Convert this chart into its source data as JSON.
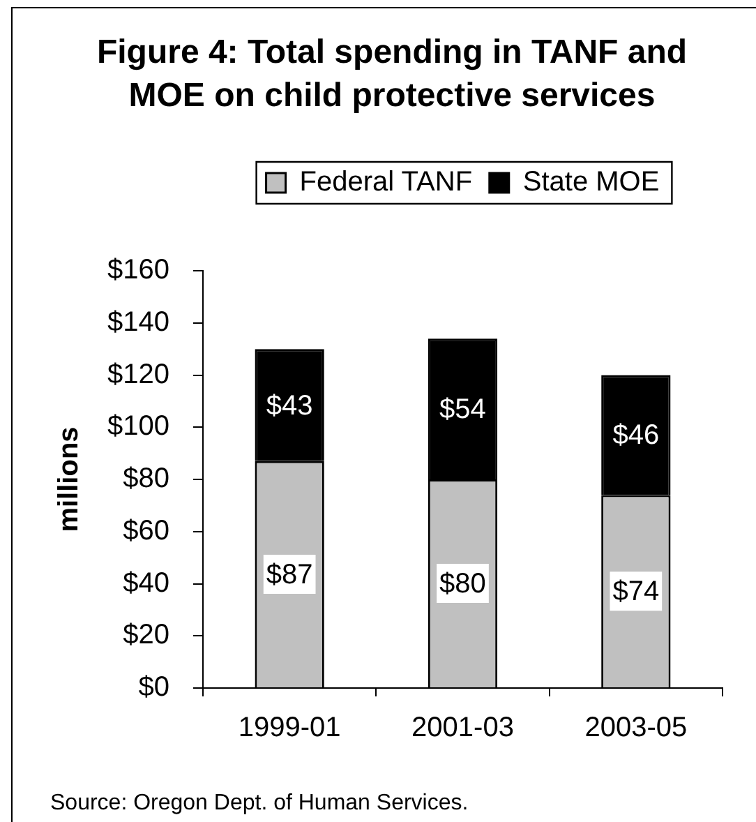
{
  "chart_data": {
    "type": "bar",
    "title": "Figure 4: Total spending in TANF and MOE on child protective services",
    "ylabel": "millions",
    "categories": [
      "1999-01",
      "2001-03",
      "2003-05"
    ],
    "series": [
      {
        "name": "Federal TANF",
        "color": "#c0c0c0",
        "values": [
          87,
          80,
          74
        ],
        "value_labels": [
          "$87",
          "$80",
          "$74"
        ]
      },
      {
        "name": "State MOE",
        "color": "#000000",
        "values": [
          43,
          54,
          46
        ],
        "value_labels": [
          "$43",
          "$54",
          "$46"
        ]
      }
    ],
    "stacked": true,
    "ylim": [
      0,
      160
    ],
    "yticks": [
      {
        "value": 0,
        "label": "$0"
      },
      {
        "value": 20,
        "label": "$20"
      },
      {
        "value": 40,
        "label": "$40"
      },
      {
        "value": 60,
        "label": "$60"
      },
      {
        "value": 80,
        "label": "$80"
      },
      {
        "value": 100,
        "label": "$100"
      },
      {
        "value": 120,
        "label": "$120"
      },
      {
        "value": 140,
        "label": "$140"
      },
      {
        "value": 160,
        "label": "$160"
      }
    ],
    "grid": false,
    "legend": "top",
    "annotations": [
      "Source: Oregon Dept. of Human Services."
    ]
  }
}
